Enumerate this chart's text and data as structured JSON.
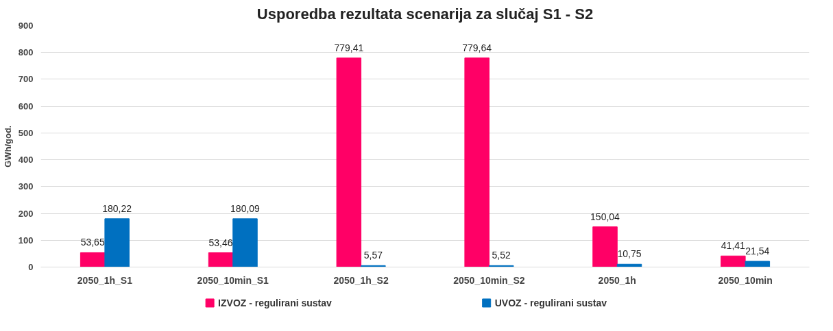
{
  "chart_data": {
    "type": "bar",
    "title": "Usporedba rezultata scenarija za slučaj S1 - S2",
    "ylabel": "GWh/god.",
    "categories": [
      "2050_1h_S1",
      "2050_10min_S1",
      "2050_1h_S2",
      "2050_10min_S2",
      "2050_1h",
      "2050_10min"
    ],
    "series": [
      {
        "name": "IZVOZ - regulirani sustav",
        "color": "#ff0066",
        "values": [
          53.65,
          53.46,
          779.41,
          779.64,
          150.04,
          41.41
        ],
        "value_labels": [
          "53,65",
          "53,46",
          "779,41",
          "779,64",
          "150,04",
          "41,41"
        ]
      },
      {
        "name": "UVOZ - regulirani sustav",
        "color": "#0070c0",
        "values": [
          180.22,
          180.09,
          5.57,
          5.52,
          10.75,
          21.54
        ],
        "value_labels": [
          "180,22",
          "180,09",
          "5,57",
          "5,52",
          "10,75",
          "21,54"
        ]
      }
    ],
    "ylim": [
      0,
      900
    ],
    "yticks": [
      0,
      100,
      200,
      300,
      400,
      500,
      600,
      700,
      800,
      900
    ],
    "grid": "y",
    "legend": "bottom"
  }
}
